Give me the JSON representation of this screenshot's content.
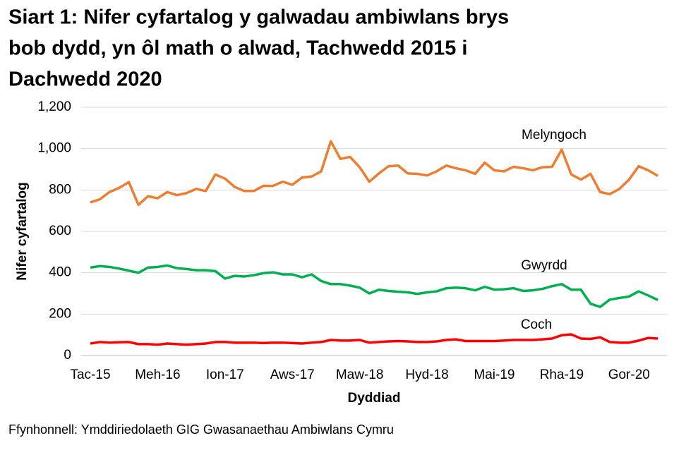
{
  "chart_data": {
    "type": "line",
    "title_lines": [
      "Siart 1: Nifer cyfartalog y galwadau ambiwlans brys",
      "bob dydd, yn ôl math o alwad, Tachwedd 2015 i",
      "Dachwedd 2020"
    ],
    "x_label": "Dyddiad",
    "y_label": "Nifer cyfartalog",
    "source": "Ffynhonnell: Ymddiriedolaeth GIG Gwasanaethau Ambiwlans Cymru",
    "categories": [
      "Tac-15",
      null,
      null,
      null,
      null,
      null,
      null,
      "Meh-16",
      null,
      null,
      null,
      null,
      null,
      null,
      "Ion-17",
      null,
      null,
      null,
      null,
      null,
      null,
      "Aws-17",
      null,
      null,
      null,
      null,
      null,
      null,
      "Maw-18",
      null,
      null,
      null,
      null,
      null,
      null,
      "Hyd-18",
      null,
      null,
      null,
      null,
      null,
      null,
      "Mai-19",
      null,
      null,
      null,
      null,
      null,
      null,
      "Rha-19",
      null,
      null,
      null,
      null,
      null,
      null,
      "Gor-20",
      null,
      null,
      null
    ],
    "ylim": [
      0,
      1200
    ],
    "yticks": [
      0,
      200,
      400,
      600,
      800,
      {
        "value": 1000,
        "label": "1,000"
      },
      {
        "value": 1200,
        "label": "1,200"
      }
    ],
    "grid": true,
    "series": [
      {
        "name": "Melyngoch",
        "color": "#ed7d31",
        "values": [
          740,
          755,
          790,
          810,
          838,
          728,
          770,
          760,
          790,
          775,
          785,
          805,
          795,
          875,
          855,
          815,
          795,
          795,
          820,
          820,
          840,
          825,
          860,
          865,
          890,
          1035,
          950,
          960,
          910,
          840,
          880,
          915,
          918,
          880,
          878,
          870,
          890,
          918,
          905,
          895,
          878,
          932,
          895,
          890,
          912,
          905,
          895,
          910,
          912,
          995,
          875,
          850,
          878,
          790,
          780,
          805,
          850,
          915,
          895,
          868
        ]
      },
      {
        "name": "Gwyrdd",
        "color": "#00b050",
        "values": [
          425,
          432,
          428,
          420,
          410,
          400,
          425,
          428,
          435,
          422,
          418,
          412,
          412,
          408,
          372,
          385,
          382,
          388,
          398,
          402,
          392,
          392,
          378,
          392,
          360,
          345,
          345,
          338,
          328,
          300,
          318,
          312,
          308,
          305,
          298,
          305,
          310,
          325,
          328,
          325,
          315,
          332,
          318,
          320,
          325,
          312,
          315,
          322,
          335,
          345,
          318,
          318,
          250,
          235,
          270,
          278,
          285,
          310,
          290,
          268
        ]
      },
      {
        "name": "Coch",
        "color": "#ff0000",
        "values": [
          58,
          65,
          62,
          64,
          65,
          55,
          55,
          52,
          58,
          55,
          52,
          55,
          58,
          65,
          65,
          62,
          62,
          62,
          60,
          62,
          62,
          60,
          58,
          62,
          65,
          75,
          72,
          72,
          75,
          62,
          65,
          68,
          70,
          68,
          65,
          65,
          68,
          75,
          78,
          70,
          70,
          70,
          70,
          72,
          75,
          75,
          75,
          78,
          82,
          98,
          102,
          82,
          80,
          88,
          65,
          62,
          62,
          72,
          85,
          82
        ]
      }
    ]
  }
}
